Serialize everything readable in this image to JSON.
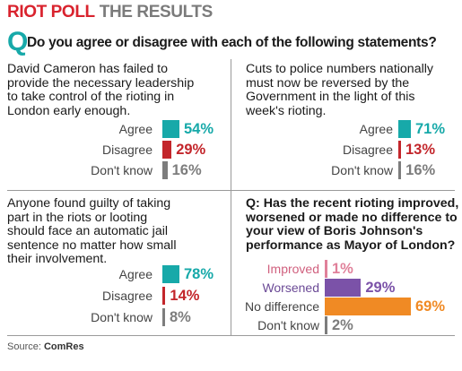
{
  "header": {
    "title_main": "RIOT POLL",
    "title_sub": "THE RESULTS"
  },
  "question": {
    "mark": "Q",
    "text": "Do you agree or disagree with each of the following statements?"
  },
  "chart_data": [
    {
      "type": "bar",
      "title": "David Cameron has failed to\nprovide the necessary leadership\nto take control of the rioting in\nLondon early enough.",
      "categories": [
        "Agree",
        "Disagree",
        "Don't know"
      ],
      "values": [
        54,
        29,
        16
      ],
      "value_labels": [
        "54%",
        "29%",
        "16%"
      ],
      "colors": [
        "#17a9a9",
        "#c3262b",
        "#7d7d7d"
      ]
    },
    {
      "type": "bar",
      "title": "Cuts to police numbers nationally\nmust now be reversed by the\nGovernment in the light of this\nweek's rioting.",
      "categories": [
        "Agree",
        "Disagree",
        "Don't know"
      ],
      "values": [
        71,
        13,
        16
      ],
      "value_labels": [
        "71%",
        "13%",
        "16%"
      ],
      "colors": [
        "#17a9a9",
        "#c3262b",
        "#7d7d7d"
      ]
    },
    {
      "type": "bar",
      "title": "Anyone found guilty of taking\npart in the riots or looting\nshould face an automatic jail\nsentence no matter how small\ntheir involvement.",
      "categories": [
        "Agree",
        "Disagree",
        "Don't know"
      ],
      "values": [
        78,
        14,
        8
      ],
      "value_labels": [
        "78%",
        "14%",
        "8%"
      ],
      "colors": [
        "#17a9a9",
        "#c3262b",
        "#7d7d7d"
      ]
    },
    {
      "type": "bar",
      "title": "Q: Has the recent rioting improved,\nworsened or made no difference to\nyour view of Boris Johnson's\nperformance as Mayor of London?",
      "categories": [
        "Improved",
        "Worsened",
        "No difference",
        "Don't know"
      ],
      "values": [
        1,
        29,
        69,
        2
      ],
      "value_labels": [
        "1%",
        "29%",
        "69%",
        "2%"
      ],
      "colors": [
        "#e0809a",
        "#7b52a8",
        "#f08a24",
        "#7d7d7d"
      ]
    }
  ],
  "source": {
    "label": "Source:",
    "name": "ComRes"
  }
}
